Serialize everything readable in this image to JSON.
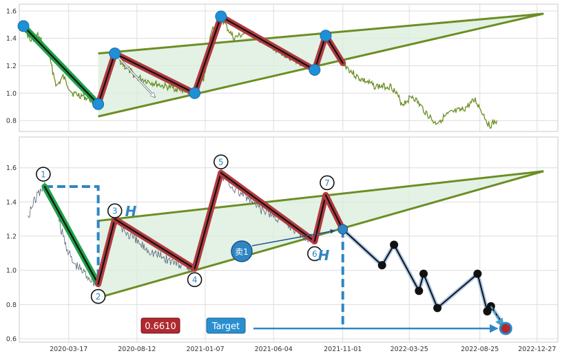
{
  "chart_data": [
    {
      "panel": "top",
      "type": "line",
      "ylim": [
        0.72,
        1.65
      ],
      "xlim": [
        "2019-12-01",
        "2023-02-10"
      ],
      "grid": true,
      "y_ticks": [
        0.8,
        1.0,
        1.2,
        1.4,
        1.6
      ],
      "series_color": "#6b8e23",
      "price": [
        {
          "x": "2019-12-10",
          "y": 1.5
        },
        {
          "x": "2019-12-25",
          "y": 1.38
        },
        {
          "x": "2020-01-10",
          "y": 1.42
        },
        {
          "x": "2020-02-01",
          "y": 1.3
        },
        {
          "x": "2020-02-20",
          "y": 1.05
        },
        {
          "x": "2020-03-05",
          "y": 1.12
        },
        {
          "x": "2020-03-25",
          "y": 1.0
        },
        {
          "x": "2020-04-15",
          "y": 0.98
        },
        {
          "x": "2020-05-05",
          "y": 0.95
        },
        {
          "x": "2020-05-20",
          "y": 0.92
        },
        {
          "x": "2020-06-05",
          "y": 1.05
        },
        {
          "x": "2020-06-25",
          "y": 1.29
        },
        {
          "x": "2020-07-15",
          "y": 1.2
        },
        {
          "x": "2020-08-10",
          "y": 1.12
        },
        {
          "x": "2020-09-10",
          "y": 1.08
        },
        {
          "x": "2020-10-10",
          "y": 1.05
        },
        {
          "x": "2020-11-10",
          "y": 1.03
        },
        {
          "x": "2020-12-15",
          "y": 1.0
        },
        {
          "x": "2021-01-05",
          "y": 1.12
        },
        {
          "x": "2021-01-20",
          "y": 1.45
        },
        {
          "x": "2021-02-10",
          "y": 1.55
        },
        {
          "x": "2021-03-10",
          "y": 1.4
        },
        {
          "x": "2021-04-10",
          "y": 1.45
        },
        {
          "x": "2021-05-10",
          "y": 1.38
        },
        {
          "x": "2021-06-20",
          "y": 1.3
        },
        {
          "x": "2021-08-01",
          "y": 1.22
        },
        {
          "x": "2021-09-01",
          "y": 1.17
        },
        {
          "x": "2021-09-25",
          "y": 1.42
        },
        {
          "x": "2021-10-15",
          "y": 1.3
        },
        {
          "x": "2021-11-01",
          "y": 1.22
        },
        {
          "x": "2021-12-01",
          "y": 1.12
        },
        {
          "x": "2022-01-10",
          "y": 1.05
        },
        {
          "x": "2022-02-15",
          "y": 1.05
        },
        {
          "x": "2022-03-10",
          "y": 0.92
        },
        {
          "x": "2022-04-01",
          "y": 0.98
        },
        {
          "x": "2022-04-25",
          "y": 0.88
        },
        {
          "x": "2022-05-20",
          "y": 0.78
        },
        {
          "x": "2022-06-20",
          "y": 0.85
        },
        {
          "x": "2022-07-20",
          "y": 0.88
        },
        {
          "x": "2022-08-15",
          "y": 0.95
        },
        {
          "x": "2022-09-01",
          "y": 0.85
        },
        {
          "x": "2022-09-15",
          "y": 0.76
        },
        {
          "x": "2022-10-01",
          "y": 0.8
        }
      ],
      "pivots": [
        {
          "x": "2019-12-10",
          "y": 1.49
        },
        {
          "x": "2020-05-20",
          "y": 0.92
        },
        {
          "x": "2020-06-25",
          "y": 1.29
        },
        {
          "x": "2020-12-15",
          "y": 1.0
        },
        {
          "x": "2021-02-10",
          "y": 1.56
        },
        {
          "x": "2021-09-01",
          "y": 1.17
        },
        {
          "x": "2021-09-25",
          "y": 1.42
        }
      ],
      "wave_end": {
        "x": "2021-11-01",
        "y": 1.22
      },
      "triangle": {
        "upper": [
          {
            "x": "2020-05-20",
            "y": 1.29
          },
          {
            "x": "2023-01-10",
            "y": 1.58
          }
        ],
        "lower": [
          {
            "x": "2020-05-20",
            "y": 0.83
          },
          {
            "x": "2023-01-10",
            "y": 1.58
          }
        ]
      },
      "arrow": {
        "from": {
          "x": "2020-06-25",
          "y": 1.29
        },
        "to": {
          "x": "2020-09-20",
          "y": 0.97
        }
      }
    },
    {
      "panel": "bottom",
      "type": "line",
      "ylim": [
        0.58,
        1.78
      ],
      "xlim": [
        "2019-12-01",
        "2023-02-10"
      ],
      "grid": true,
      "y_ticks": [
        0.6,
        0.8,
        1.0,
        1.2,
        1.4,
        1.6
      ],
      "x_ticks": [
        "2020-03-17",
        "2020-08-12",
        "2021-01-07",
        "2021-06-04",
        "2021-11-01",
        "2022-03-25",
        "2022-08-25",
        "2022-12-27"
      ],
      "series_color": "#5a6478",
      "price": [
        {
          "x": "2019-12-20",
          "y": 1.32
        },
        {
          "x": "2020-01-05",
          "y": 1.42
        },
        {
          "x": "2020-01-25",
          "y": 1.5
        },
        {
          "x": "2020-02-15",
          "y": 1.38
        },
        {
          "x": "2020-03-05",
          "y": 1.2
        },
        {
          "x": "2020-03-25",
          "y": 1.05
        },
        {
          "x": "2020-04-15",
          "y": 1.0
        },
        {
          "x": "2020-05-05",
          "y": 0.95
        },
        {
          "x": "2020-05-20",
          "y": 0.92
        },
        {
          "x": "2020-06-05",
          "y": 1.05
        },
        {
          "x": "2020-06-25",
          "y": 1.3
        },
        {
          "x": "2020-07-20",
          "y": 1.22
        },
        {
          "x": "2020-08-20",
          "y": 1.15
        },
        {
          "x": "2020-09-20",
          "y": 1.1
        },
        {
          "x": "2020-10-20",
          "y": 1.06
        },
        {
          "x": "2020-11-20",
          "y": 1.03
        },
        {
          "x": "2020-12-15",
          "y": 1.01
        },
        {
          "x": "2021-01-10",
          "y": 1.3
        },
        {
          "x": "2021-01-25",
          "y": 1.45
        },
        {
          "x": "2021-02-10",
          "y": 1.57
        },
        {
          "x": "2021-03-10",
          "y": 1.48
        },
        {
          "x": "2021-04-10",
          "y": 1.42
        },
        {
          "x": "2021-05-10",
          "y": 1.35
        },
        {
          "x": "2021-06-20",
          "y": 1.3
        },
        {
          "x": "2021-08-01",
          "y": 1.22
        },
        {
          "x": "2021-09-01",
          "y": 1.17
        },
        {
          "x": "2021-09-25",
          "y": 1.44
        },
        {
          "x": "2021-10-15",
          "y": 1.32
        },
        {
          "x": "2021-11-01",
          "y": 1.24
        }
      ],
      "pivots": [
        {
          "label": "1",
          "x": "2020-01-25",
          "y": 1.49
        },
        {
          "label": "2",
          "x": "2020-05-20",
          "y": 0.92
        },
        {
          "label": "3",
          "x": "2020-06-25",
          "y": 1.3
        },
        {
          "label": "4",
          "x": "2020-12-15",
          "y": 1.01
        },
        {
          "label": "5",
          "x": "2021-02-10",
          "y": 1.57
        },
        {
          "label": "6",
          "x": "2021-09-01",
          "y": 1.17
        },
        {
          "label": "7",
          "x": "2021-09-25",
          "y": 1.44
        }
      ],
      "projection": [
        {
          "x": "2021-11-01",
          "y": 1.24
        },
        {
          "x": "2022-01-25",
          "y": 1.03
        },
        {
          "x": "2022-02-20",
          "y": 1.15
        },
        {
          "x": "2022-04-15",
          "y": 0.88
        },
        {
          "x": "2022-04-25",
          "y": 0.98
        },
        {
          "x": "2022-05-25",
          "y": 0.78
        },
        {
          "x": "2022-08-20",
          "y": 0.98
        },
        {
          "x": "2022-09-10",
          "y": 0.76
        },
        {
          "x": "2022-09-18",
          "y": 0.79
        },
        {
          "x": "2022-10-20",
          "y": 0.66
        }
      ],
      "triangle": {
        "upper": [
          {
            "x": "2020-05-20",
            "y": 1.29
          },
          {
            "x": "2023-01-10",
            "y": 1.58
          }
        ],
        "lower": [
          {
            "x": "2020-05-20",
            "y": 0.84
          },
          {
            "x": "2023-01-10",
            "y": 1.58
          }
        ]
      },
      "breakout": {
        "x": "2021-11-01",
        "y": 1.24
      },
      "target": {
        "x": "2022-10-20",
        "y": 0.66
      },
      "height_marker": {
        "x": "2021-11-01",
        "y_top": 1.24,
        "y_bottom": 0.66
      },
      "target_line_y": 0.66,
      "dashed_box": {
        "x_left": "2020-01-25",
        "x_right": "2020-05-20",
        "y_top": 1.49,
        "y_bottom": 0.92
      },
      "labels": {
        "sell_badge": "卖1",
        "height_left": "H",
        "height_right": "H",
        "target_value": "0.6610",
        "target_button": "Target"
      }
    }
  ]
}
